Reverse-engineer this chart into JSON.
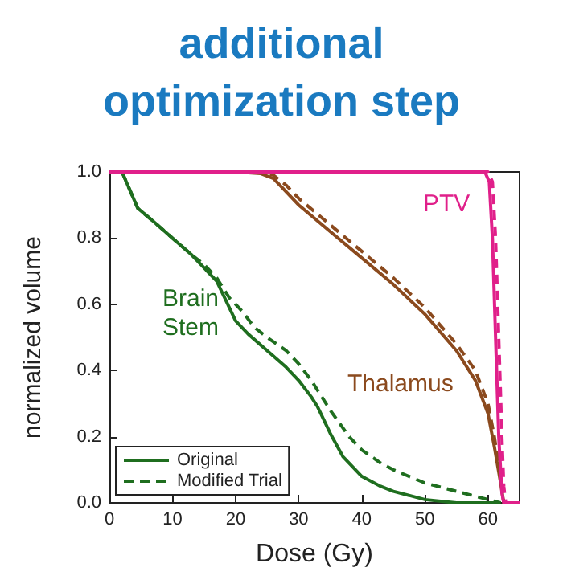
{
  "chart_data": {
    "type": "line",
    "title": "additional\noptimization step",
    "xlabel": "Dose (Gy)",
    "ylabel": "normalized volume",
    "xlim": [
      0,
      65
    ],
    "ylim": [
      0,
      1
    ],
    "xticks": [
      0,
      10,
      20,
      30,
      40,
      50,
      60
    ],
    "yticks": [
      {
        "value": 0,
        "label": "0.0"
      },
      0.2,
      0.4,
      0.6,
      0.8,
      {
        "value": 1,
        "label": "1.0"
      }
    ],
    "grid": false,
    "legend": "bottom left",
    "marker": "none",
    "series": [
      {
        "name": "Original",
        "color": "#1f6e1f",
        "line_style": "solid",
        "x": [
          2,
          4.5,
          7,
          10,
          13,
          15,
          17,
          18,
          20,
          22,
          25,
          28,
          30,
          32,
          33,
          35,
          37,
          40,
          43,
          45,
          50,
          55,
          62
        ],
        "values": [
          1,
          0.89,
          0.85,
          0.8,
          0.75,
          0.71,
          0.67,
          0.63,
          0.55,
          0.51,
          0.46,
          0.41,
          0.37,
          0.32,
          0.29,
          0.21,
          0.14,
          0.08,
          0.05,
          0.035,
          0.01,
          0,
          0
        ]
      },
      {
        "name": "Modified Trial",
        "color": "#1f6e1f",
        "line_style": "dashed",
        "x": [
          2,
          4.5,
          7,
          10,
          13,
          15,
          17,
          19,
          21,
          23,
          25,
          28,
          30,
          32,
          35,
          38,
          40,
          43,
          45,
          50,
          55,
          60,
          62
        ],
        "values": [
          1,
          0.89,
          0.85,
          0.8,
          0.75,
          0.72,
          0.68,
          0.62,
          0.58,
          0.53,
          0.5,
          0.46,
          0.42,
          0.37,
          0.28,
          0.2,
          0.16,
          0.12,
          0.1,
          0.06,
          0.035,
          0.01,
          0
        ]
      },
      {
        "color": "#8b4a1e",
        "line_style": "solid",
        "x": [
          0,
          20,
          24,
          26,
          28,
          30,
          35,
          40,
          45,
          50,
          55,
          58,
          60,
          61,
          62,
          62.5,
          65
        ],
        "values": [
          1,
          1,
          0.995,
          0.98,
          0.94,
          0.9,
          0.82,
          0.74,
          0.66,
          0.57,
          0.46,
          0.37,
          0.27,
          0.17,
          0.06,
          0,
          0
        ]
      },
      {
        "color": "#8b4a1e",
        "line_style": "dashed",
        "x": [
          0,
          20,
          24,
          26,
          28,
          30,
          35,
          40,
          45,
          50,
          55,
          58,
          60,
          61,
          62,
          62.5,
          65
        ],
        "values": [
          1,
          1,
          1,
          0.99,
          0.96,
          0.92,
          0.84,
          0.76,
          0.68,
          0.59,
          0.48,
          0.4,
          0.3,
          0.2,
          0.08,
          0,
          0
        ]
      },
      {
        "color": "#e0208a",
        "line_style": "solid",
        "x": [
          0,
          59.5,
          60.2,
          60.7,
          61.2,
          61.7,
          62.2,
          62.5,
          65
        ],
        "values": [
          1,
          1,
          0.97,
          0.8,
          0.5,
          0.2,
          0.03,
          0,
          0
        ]
      },
      {
        "color": "#e0208a",
        "line_style": "dashed",
        "x": [
          0,
          60,
          60.7,
          61.2,
          61.7,
          62.2,
          62.5,
          62.8,
          65
        ],
        "values": [
          1,
          1,
          0.97,
          0.8,
          0.5,
          0.2,
          0.05,
          0,
          0
        ]
      }
    ],
    "annotations": [
      "Brain\nStem",
      "Thalamus",
      "PTV"
    ]
  }
}
